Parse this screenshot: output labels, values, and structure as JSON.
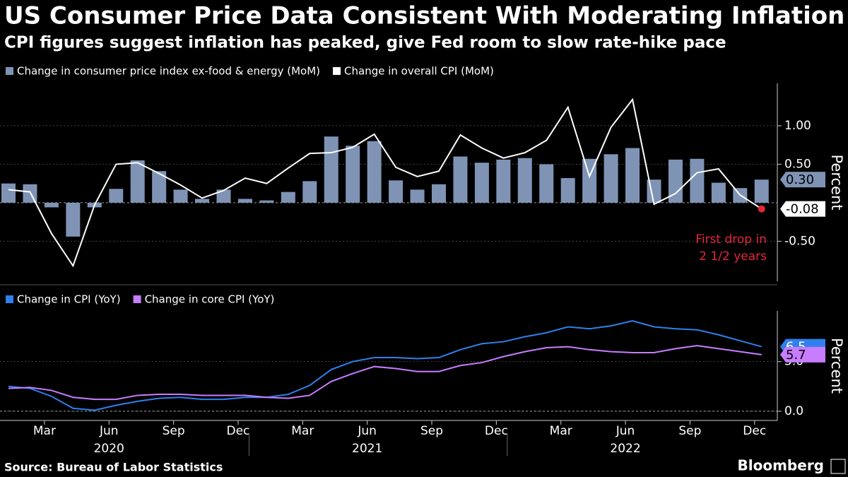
{
  "title": "US Consumer Price Data Consistent With Moderating Inflation",
  "subtitle": "CPI figures suggest inflation has peaked, give Fed room to slow rate-hike pace",
  "source": "Source: Bureau of Labor Statistics",
  "brand": "Bloomberg",
  "chart_data": [
    {
      "type": "combo",
      "y_label": "Percent",
      "x": [
        "2020-01",
        "2020-02",
        "2020-03",
        "2020-04",
        "2020-05",
        "2020-06",
        "2020-07",
        "2020-08",
        "2020-09",
        "2020-10",
        "2020-11",
        "2020-12",
        "2021-01",
        "2021-02",
        "2021-03",
        "2021-04",
        "2021-05",
        "2021-06",
        "2021-07",
        "2021-08",
        "2021-09",
        "2021-10",
        "2021-11",
        "2021-12",
        "2022-01",
        "2022-02",
        "2022-03",
        "2022-04",
        "2022-05",
        "2022-06",
        "2022-07",
        "2022-08",
        "2022-09",
        "2022-10",
        "2022-11",
        "2022-12"
      ],
      "ylim": [
        -1.02,
        1.55
      ],
      "yticks": [
        {
          "value": -0.5,
          "label": "-0.50"
        },
        {
          "value": 0.5,
          "label": "0.50"
        },
        {
          "value": 1,
          "label": "1.00"
        }
      ],
      "series": [
        {
          "name": "Change in consumer price index ex-food & energy (MoM)",
          "type": "bar",
          "color": "#7f93b5",
          "label_text": "#000000",
          "values": [
            0.25,
            0.24,
            -0.06,
            -0.44,
            -0.06,
            0.18,
            0.55,
            0.41,
            0.17,
            0.05,
            0.17,
            0.05,
            0.03,
            0.14,
            0.28,
            0.86,
            0.74,
            0.8,
            0.29,
            0.17,
            0.24,
            0.6,
            0.52,
            0.56,
            0.58,
            0.5,
            0.32,
            0.57,
            0.63,
            0.71,
            0.3,
            0.56,
            0.57,
            0.26,
            0.19,
            0.3
          ],
          "value_labels": [
            null,
            null,
            null,
            null,
            null,
            null,
            null,
            null,
            null,
            null,
            null,
            null,
            null,
            null,
            null,
            null,
            null,
            null,
            null,
            null,
            null,
            null,
            null,
            null,
            null,
            null,
            null,
            null,
            null,
            null,
            null,
            null,
            null,
            null,
            null,
            "0.30"
          ]
        },
        {
          "name": "Change in overall CPI (MoM)",
          "type": "line",
          "color": "#ffffff",
          "label_text": "#000000",
          "values": [
            0.17,
            0.14,
            -0.4,
            -0.82,
            -0.03,
            0.5,
            0.52,
            0.38,
            0.23,
            0.06,
            0.16,
            0.32,
            0.25,
            0.45,
            0.64,
            0.65,
            0.72,
            0.89,
            0.46,
            0.34,
            0.41,
            0.88,
            0.71,
            0.58,
            0.65,
            0.81,
            1.24,
            0.34,
            0.98,
            1.34,
            -0.02,
            0.12,
            0.39,
            0.44,
            0.1,
            -0.08
          ]
        }
      ],
      "annotation": {
        "lines": [
          "First drop in",
          "2 1/2 years"
        ],
        "color": "#e8243c"
      }
    },
    {
      "type": "line",
      "y_label": "Percent",
      "x": [
        "2020-01",
        "2020-02",
        "2020-03",
        "2020-04",
        "2020-05",
        "2020-06",
        "2020-07",
        "2020-08",
        "2020-09",
        "2020-10",
        "2020-11",
        "2020-12",
        "2021-01",
        "2021-02",
        "2021-03",
        "2021-04",
        "2021-05",
        "2021-06",
        "2021-07",
        "2021-08",
        "2021-09",
        "2021-10",
        "2021-11",
        "2021-12",
        "2022-01",
        "2022-02",
        "2022-03",
        "2022-04",
        "2022-05",
        "2022-06",
        "2022-07",
        "2022-08",
        "2022-09",
        "2022-10",
        "2022-11",
        "2022-12"
      ],
      "ylim": [
        -0.93,
        10.1
      ],
      "yticks": [
        {
          "value": 0,
          "label": "0.0"
        },
        {
          "value": 5,
          "label": "5.0"
        }
      ],
      "xticks": [
        {
          "value": "2020-03",
          "label": "Mar"
        },
        {
          "value": "2020-06",
          "label": "Jun"
        },
        {
          "value": "2020-09",
          "label": "Sep"
        },
        {
          "value": "2020-12",
          "label": "Dec"
        },
        {
          "value": "2021-03",
          "label": "Mar"
        },
        {
          "value": "2021-06",
          "label": "Jun"
        },
        {
          "value": "2021-09",
          "label": "Sep"
        },
        {
          "value": "2021-12",
          "label": "Dec"
        },
        {
          "value": "2022-03",
          "label": "Mar"
        },
        {
          "value": "2022-06",
          "label": "Jun"
        },
        {
          "value": "2022-09",
          "label": "Sep"
        },
        {
          "value": "2022-12",
          "label": "Dec"
        }
      ],
      "year_ticks": [
        {
          "value": "2020-06",
          "label": "2020"
        },
        {
          "value": "2021-06",
          "label": "2021"
        },
        {
          "value": "2022-06",
          "label": "2022"
        }
      ],
      "series": [
        {
          "name": "Change in CPI (YoY)",
          "type": "line",
          "color": "#2f80ed",
          "label_text": "#ffffff",
          "values": [
            2.5,
            2.3,
            1.5,
            0.3,
            0.1,
            0.6,
            1.0,
            1.3,
            1.4,
            1.2,
            1.2,
            1.4,
            1.4,
            1.7,
            2.6,
            4.2,
            5.0,
            5.4,
            5.4,
            5.3,
            5.4,
            6.2,
            6.8,
            7.0,
            7.5,
            7.9,
            8.5,
            8.3,
            8.6,
            9.1,
            8.5,
            8.3,
            8.2,
            7.7,
            7.1,
            6.5
          ]
        },
        {
          "name": "Change in core CPI (YoY)",
          "type": "line",
          "color": "#c77dff",
          "label_text": "#000000",
          "values": [
            2.3,
            2.4,
            2.1,
            1.4,
            1.2,
            1.2,
            1.6,
            1.7,
            1.7,
            1.6,
            1.6,
            1.6,
            1.4,
            1.3,
            1.6,
            3.0,
            3.8,
            4.5,
            4.3,
            4.0,
            4.0,
            4.6,
            4.9,
            5.5,
            6.0,
            6.4,
            6.5,
            6.2,
            6.0,
            5.9,
            5.9,
            6.3,
            6.6,
            6.3,
            6.0,
            5.7
          ]
        }
      ]
    }
  ]
}
